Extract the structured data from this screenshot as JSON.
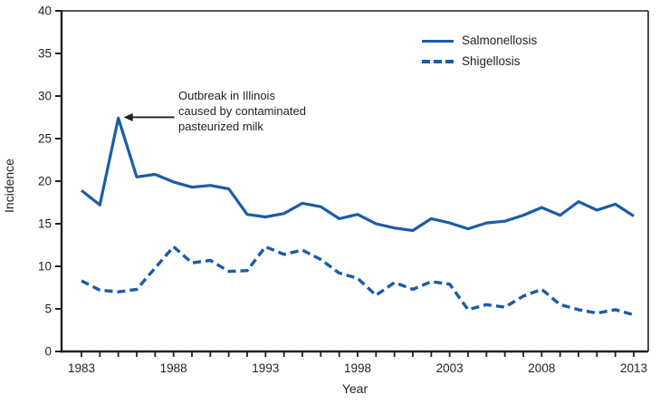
{
  "chart_data": {
    "type": "line",
    "title": "",
    "xlabel": "Year",
    "ylabel": "Incidence",
    "ylim": [
      0,
      40
    ],
    "ytick_step": 5,
    "grid": false,
    "legend_position": "top-right-inside",
    "line_color": "#1b5ca6",
    "axis_color": "#231f20",
    "x": [
      1983,
      1984,
      1985,
      1986,
      1987,
      1988,
      1989,
      1990,
      1991,
      1992,
      1993,
      1994,
      1995,
      1996,
      1997,
      1998,
      1999,
      2000,
      2001,
      2002,
      2003,
      2004,
      2005,
      2006,
      2007,
      2008,
      2009,
      2010,
      2011,
      2012,
      2013
    ],
    "xtick_labels": [
      1983,
      1988,
      1993,
      1998,
      2003,
      2008,
      2013
    ],
    "series": [
      {
        "name": "Salmonellosis",
        "style": "solid",
        "color": "#1b5ca6",
        "values": [
          18.9,
          17.2,
          27.4,
          20.5,
          20.8,
          19.9,
          19.3,
          19.5,
          19.1,
          16.1,
          15.8,
          16.2,
          17.4,
          17.0,
          15.6,
          16.1,
          15.0,
          14.5,
          14.2,
          15.6,
          15.1,
          14.4,
          15.1,
          15.3,
          16.0,
          16.9,
          16.0,
          17.6,
          16.6,
          17.3,
          15.9
        ]
      },
      {
        "name": "Shigellosis",
        "style": "dashed",
        "color": "#1b5ca6",
        "values": [
          8.3,
          7.2,
          7.0,
          7.3,
          9.8,
          12.3,
          10.4,
          10.7,
          9.4,
          9.5,
          12.3,
          11.4,
          11.9,
          10.8,
          9.2,
          8.6,
          6.6,
          8.1,
          7.3,
          8.2,
          7.9,
          4.9,
          5.5,
          5.2,
          6.5,
          7.3,
          5.5,
          4.9,
          4.5,
          4.9,
          4.3
        ]
      }
    ],
    "annotation": {
      "text_lines": [
        "Outbreak in Illinois",
        "caused by contaminated",
        "pasteurized milk"
      ],
      "target_year": 1985,
      "target_value": 27.4
    }
  }
}
